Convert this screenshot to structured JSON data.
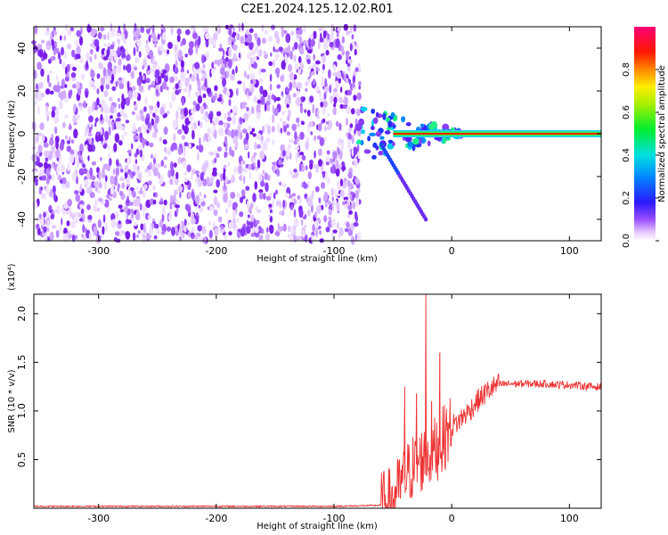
{
  "title": "C2E1.2024.125.12.02.R01",
  "chart_data": [
    {
      "type": "heatmap",
      "xlabel": "Height of straight line (km)",
      "ylabel": "Frequency (Hz)",
      "xlim": [
        -355,
        127
      ],
      "ylim": [
        -50,
        50
      ],
      "xticks": [
        -300,
        -200,
        -100,
        0,
        100
      ],
      "yticks": [
        -40,
        -20,
        0,
        20,
        40
      ],
      "colorbar": {
        "label": "Normalized spectral amplitude",
        "range": [
          0.0,
          1.0
        ],
        "ticks": [
          0.0,
          0.2,
          0.4,
          0.6,
          0.8
        ],
        "colormap": "rainbow (white - violet - blue - cyan - green - yellow - red - magenta)"
      },
      "features": {
        "noise_region_x": [
          -355,
          -78
        ],
        "noise_amplitude": "0.0-0.15 (violet speckle)",
        "transition_region_x": [
          -80,
          10
        ],
        "carrier_line": {
          "x": [
            -80,
            127
          ],
          "frequency_hz": 0,
          "amplitude": 0.85
        },
        "side_branch": {
          "x": [
            -60,
            -22
          ],
          "frequency_hz": [
            -5,
            -40
          ]
        }
      }
    },
    {
      "type": "line",
      "xlabel": "Height of straight line (km)",
      "ylabel": "SNR (10 * v/v)",
      "yscale_label": "(x10⁴)",
      "xlim": [
        -355,
        127
      ],
      "ylim": [
        0,
        2.2
      ],
      "xticks": [
        -300,
        -200,
        -100,
        0,
        100
      ],
      "yticks": [
        0.5,
        1.0,
        1.5,
        2.0
      ],
      "series": [
        {
          "color": "#ee3333",
          "x": [
            -355,
            -100,
            -60,
            -50,
            -45,
            -40,
            -35,
            -30,
            -25,
            -20,
            -15,
            -10,
            -5,
            0,
            5,
            10,
            15,
            20,
            25,
            30,
            35,
            40,
            50,
            60,
            70,
            80,
            90,
            100,
            110,
            120,
            127
          ],
          "y": [
            0.02,
            0.02,
            0.03,
            0.1,
            0.2,
            0.3,
            0.4,
            0.45,
            0.5,
            0.55,
            0.6,
            0.65,
            0.75,
            0.85,
            0.88,
            0.95,
            1.0,
            1.08,
            1.14,
            1.2,
            1.24,
            1.27,
            1.28,
            1.28,
            1.28,
            1.28,
            1.27,
            1.27,
            1.26,
            1.25,
            1.25
          ],
          "spikes": [
            {
              "x": -22,
              "y": 2.2
            },
            {
              "x": -10,
              "y": 1.6
            },
            {
              "x": -40,
              "y": 1.25
            },
            {
              "x": -30,
              "y": 1.18
            },
            {
              "x": -17,
              "y": 1.1
            }
          ]
        }
      ]
    }
  ]
}
